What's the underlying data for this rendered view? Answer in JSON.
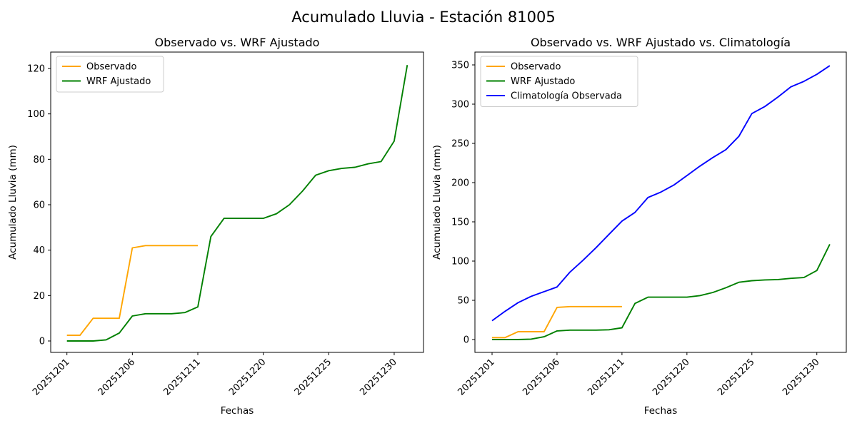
{
  "figure_title": "Acumulado Lluvia - Estación 81005",
  "chart_data": [
    {
      "type": "line",
      "title": "Observado vs. WRF Ajustado",
      "xlabel": "Fechas",
      "ylabel": "Acumulado Lluvia (mm)",
      "x_tick_labels": [
        "20251201",
        "20251206",
        "20251211",
        "20251220",
        "20251225",
        "20251230"
      ],
      "x_tick_indices": [
        0,
        5,
        10,
        15,
        20,
        25
      ],
      "n_points": 27,
      "yticks": [
        0,
        20,
        40,
        60,
        80,
        100,
        120
      ],
      "ylim": [
        0,
        120
      ],
      "grid": false,
      "legend_position": "upper left",
      "series": [
        {
          "name": "Observado",
          "color": "#FFA500",
          "values": [
            2.5,
            2.5,
            10,
            10,
            10,
            41,
            42,
            42,
            42,
            42,
            42
          ]
        },
        {
          "name": "WRF Ajustado",
          "color": "#008000",
          "values": [
            0,
            0,
            0,
            0.5,
            3.5,
            11,
            12,
            12,
            12,
            12.5,
            15,
            46,
            54,
            54,
            54,
            54,
            56,
            60,
            66,
            73,
            75,
            76,
            76.5,
            78,
            79,
            88,
            121.5
          ]
        }
      ]
    },
    {
      "type": "line",
      "title": "Observado vs. WRF Ajustado vs. Climatología",
      "xlabel": "Fechas",
      "ylabel": "Acumulado Lluvia (mm)",
      "x_tick_labels": [
        "20251201",
        "20251206",
        "20251211",
        "20251220",
        "20251225",
        "20251230"
      ],
      "x_tick_indices": [
        0,
        5,
        10,
        15,
        20,
        25
      ],
      "n_points": 27,
      "yticks": [
        0,
        50,
        100,
        150,
        200,
        250,
        300,
        350
      ],
      "ylim": [
        0,
        350
      ],
      "grid": false,
      "legend_position": "upper left",
      "series": [
        {
          "name": "Observado",
          "color": "#FFA500",
          "values": [
            2.5,
            2.5,
            10,
            10,
            10,
            41,
            42,
            42,
            42,
            42,
            42
          ]
        },
        {
          "name": "WRF Ajustado",
          "color": "#008000",
          "values": [
            0,
            0,
            0,
            0.5,
            3.5,
            11,
            12,
            12,
            12,
            12.5,
            15,
            46,
            54,
            54,
            54,
            54,
            56,
            60,
            66,
            73,
            75,
            76,
            76.5,
            78,
            79,
            88,
            121.5
          ]
        },
        {
          "name": "Climatología Observada",
          "color": "#0000FF",
          "values": [
            24,
            36,
            47,
            55,
            61,
            67,
            86,
            101,
            117,
            134,
            151,
            162,
            181,
            188,
            197,
            209,
            221,
            232,
            242,
            259,
            288,
            297,
            309,
            322,
            329,
            338,
            349
          ]
        }
      ]
    }
  ]
}
